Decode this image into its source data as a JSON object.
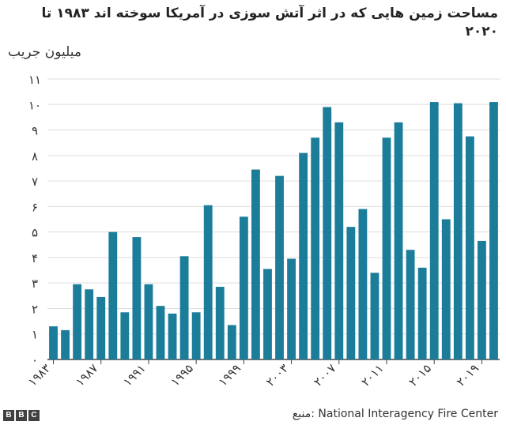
{
  "chart_data": {
    "type": "bar",
    "title": "مساحت زمین هایی که در اثر آتش سوزی در آمریکا سوخته اند ۱۹۸۳ تا ۲۰۲۰",
    "ylabel": "میلیون جریب",
    "xlabel": "",
    "ylim": [
      0,
      11
    ],
    "yticks": [
      0,
      1,
      2,
      3,
      4,
      5,
      6,
      7,
      8,
      9,
      10,
      11
    ],
    "ytick_labels": [
      "۰",
      "۱",
      "۲",
      "۳",
      "۴",
      "۵",
      "۶",
      "۷",
      "۸",
      "۹",
      "۱۰",
      "۱۱"
    ],
    "xtick_years": [
      1983,
      1987,
      1991,
      1995,
      1999,
      2003,
      2007,
      2011,
      2015,
      2019
    ],
    "xtick_labels": [
      "۱۹۸۳",
      "۱۹۸۷",
      "۱۹۹۱",
      "۱۹۹۵",
      "۱۹۹۹",
      "۲۰۰۳",
      "۲۰۰۷",
      "۲۰۱۱",
      "۲۰۱۵",
      "۲۰۱۹"
    ],
    "categories": [
      1983,
      1984,
      1985,
      1986,
      1987,
      1988,
      1989,
      1990,
      1991,
      1992,
      1993,
      1994,
      1995,
      1996,
      1997,
      1998,
      1999,
      2000,
      2001,
      2002,
      2003,
      2004,
      2005,
      2006,
      2007,
      2008,
      2009,
      2010,
      2011,
      2012,
      2013,
      2014,
      2015,
      2016,
      2017,
      2018,
      2019,
      2020
    ],
    "values": [
      1.3,
      1.15,
      2.95,
      2.75,
      2.45,
      5.0,
      1.85,
      4.8,
      2.95,
      2.1,
      1.8,
      4.05,
      1.85,
      6.05,
      2.85,
      1.35,
      5.6,
      7.45,
      3.55,
      7.2,
      3.95,
      8.1,
      8.7,
      9.9,
      9.3,
      5.2,
      5.9,
      3.4,
      8.7,
      9.3,
      4.3,
      3.6,
      10.1,
      5.5,
      10.05,
      8.75,
      4.65,
      10.1
    ],
    "bar_color": "#1b7d9a"
  },
  "footer": {
    "logo": [
      "B",
      "B",
      "C"
    ],
    "source": "منبع: National Interagency Fire Center"
  }
}
